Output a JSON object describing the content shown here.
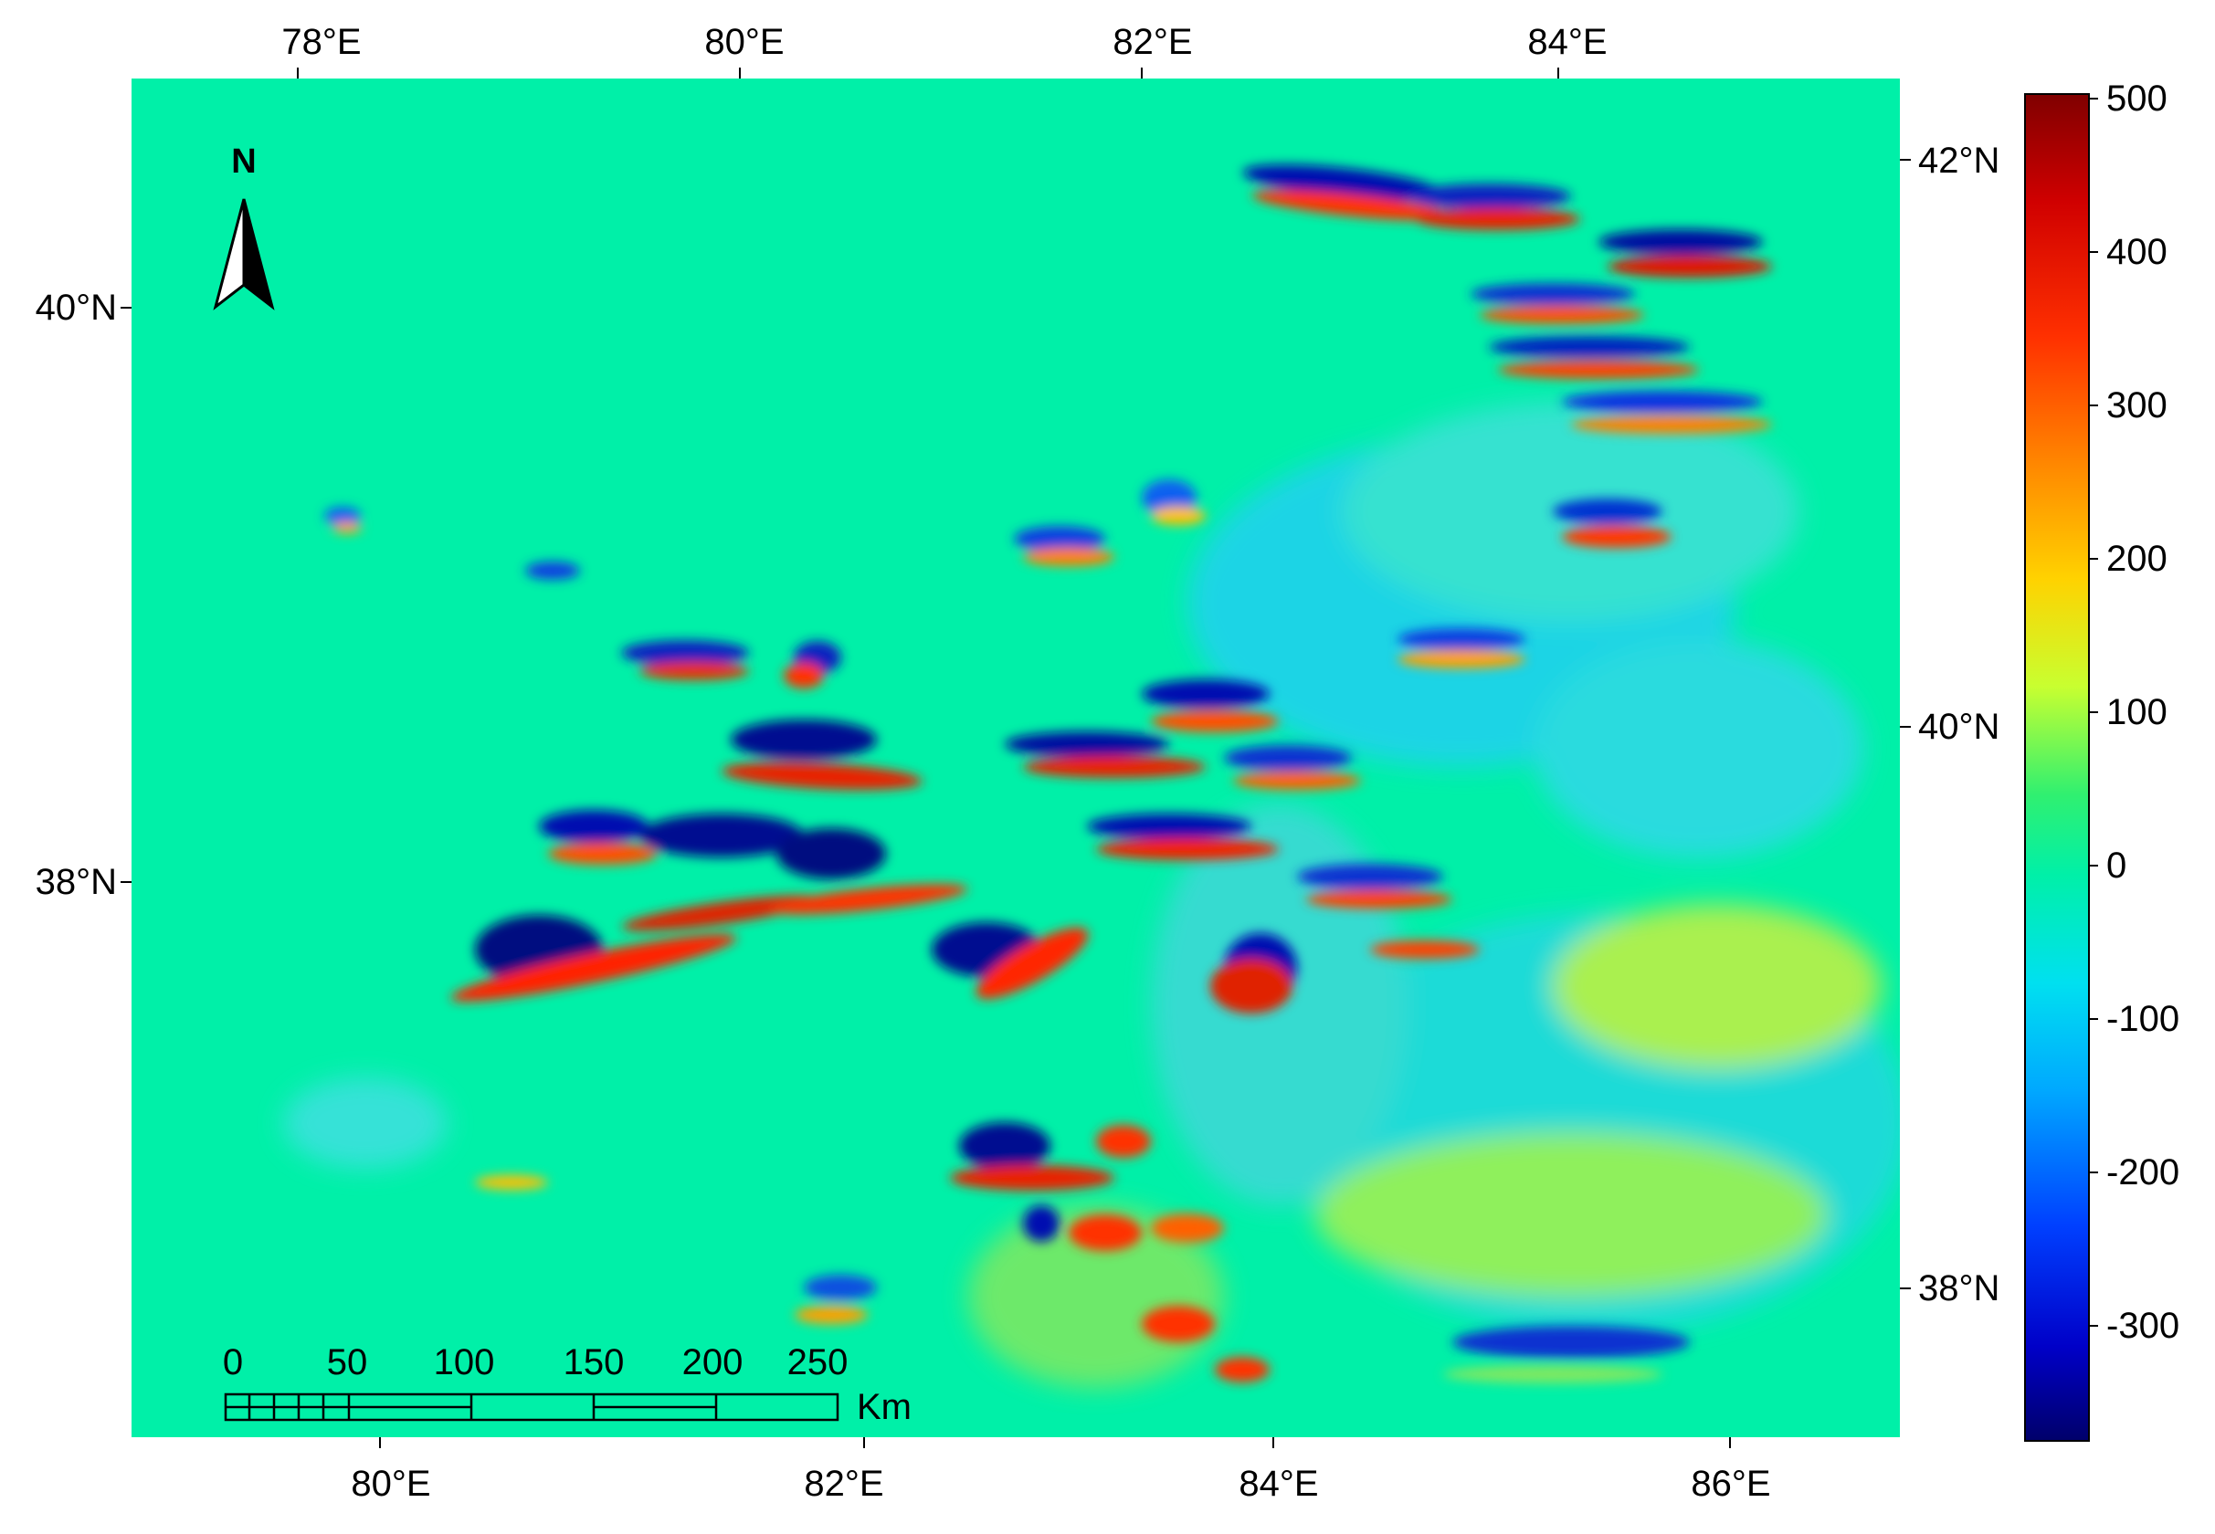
{
  "map": {
    "background_color": "#00F0A8",
    "lon_top_labels": [
      "78°E",
      "80°E",
      "82°E",
      "84°E"
    ],
    "lon_bottom_labels": [
      "80°E",
      "82°E",
      "84°E",
      "86°E"
    ],
    "lat_left_labels": [
      "40°N",
      "38°N"
    ],
    "lat_right_labels": [
      "42°N",
      "40°N",
      "38°N"
    ]
  },
  "north_arrow": {
    "label": "N",
    "icon": "north-arrow-icon"
  },
  "scale_bar": {
    "labels": [
      "0",
      "50",
      "100",
      "150",
      "200",
      "250"
    ],
    "unit": "Km",
    "icon": "scale-bar-icon"
  },
  "colorbar": {
    "ticks": [
      "500",
      "400",
      "300",
      "200",
      "100",
      "0",
      "-100",
      "-200",
      "-300"
    ],
    "colors": [
      "#800000",
      "#E00000",
      "#FF6A00",
      "#FFC800",
      "#B8FF38",
      "#00F0A8",
      "#00BCFF",
      "#0060FF",
      "#0000E0",
      "#000070"
    ]
  }
}
